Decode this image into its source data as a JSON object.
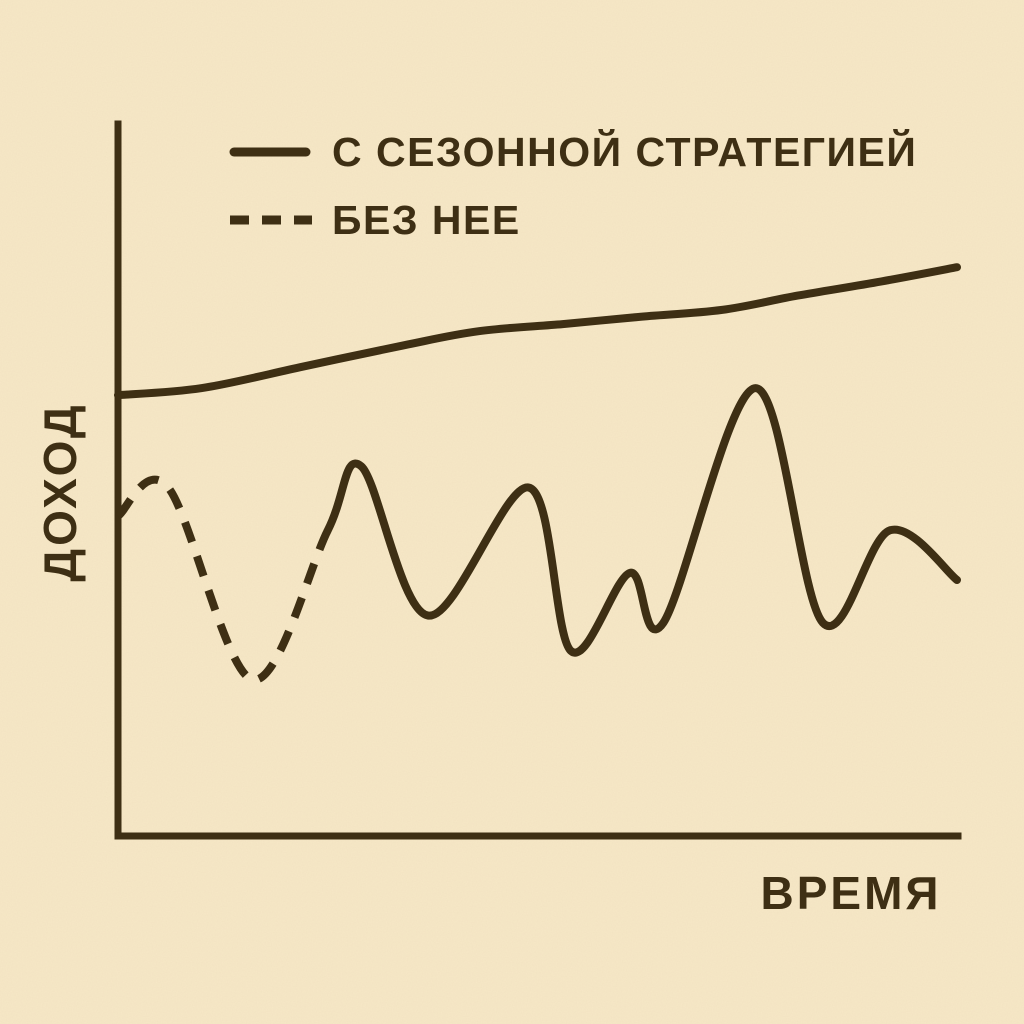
{
  "colors": {
    "background": "#f7e8c7",
    "ink": "#3e2f14"
  },
  "chart_data": {
    "type": "line",
    "title": "",
    "xlabel": "ВРЕМЯ",
    "ylabel": "ДОХОД",
    "xlim": [
      0,
      100
    ],
    "ylim": [
      0,
      100
    ],
    "grid": false,
    "legend_position": "top-left",
    "legend": [
      "С СЕЗОННОЙ СТРАТЕГИЕЙ",
      "БЕЗ НЕЕ"
    ],
    "series": [
      {
        "name": "С СЕЗОННОЙ СТРАТЕГИЕЙ",
        "style": "solid",
        "x": [
          0,
          10,
          22,
          34,
          43,
          53,
          62,
          72,
          81,
          91,
          100
        ],
        "y": [
          62,
          63,
          66,
          69,
          71,
          72,
          73,
          74,
          76,
          78,
          80
        ]
      },
      {
        "name": "БЕЗ НЕЕ",
        "style": "dashed-then-solid",
        "dashed_until_x": 25,
        "x": [
          0,
          6,
          16,
          25,
          29,
          37,
          49,
          54,
          61,
          65,
          76,
          84,
          92,
          100
        ],
        "y": [
          45,
          49,
          22,
          43,
          52,
          31,
          49,
          26,
          37,
          30,
          63,
          30,
          43,
          36
        ]
      }
    ]
  }
}
